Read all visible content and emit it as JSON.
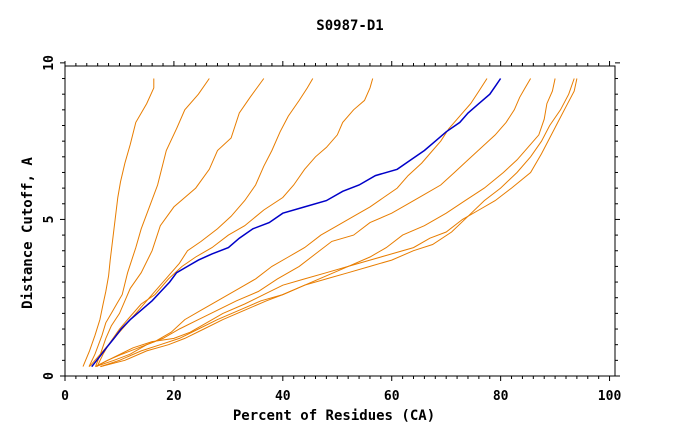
{
  "chart_data": {
    "type": "line",
    "title": "S0987-D1",
    "xlabel": "Percent of Residues (CA)",
    "ylabel": "Distance Cutoff, A",
    "xlim": [
      0,
      101
    ],
    "ylim": [
      0,
      9.9
    ],
    "xticks": [
      0,
      20,
      40,
      60,
      80,
      100
    ],
    "yticks": [
      0,
      5,
      10
    ],
    "grid": false,
    "colors": {
      "orange": "#e87d00",
      "blue": "#0000c8",
      "axis": "#000000"
    },
    "series": [
      {
        "color": "orange",
        "points": [
          [
            3.3,
            0.3
          ],
          [
            4.5,
            0.8
          ],
          [
            5.5,
            1.3
          ],
          [
            6.4,
            1.8
          ],
          [
            7,
            2.3
          ],
          [
            7.5,
            2.7
          ],
          [
            8,
            3.2
          ],
          [
            8.3,
            3.7
          ],
          [
            9,
            4.7
          ],
          [
            9.7,
            5.7
          ],
          [
            10.2,
            6.2
          ],
          [
            11,
            6.8
          ],
          [
            12,
            7.4
          ],
          [
            13,
            8.1
          ],
          [
            15,
            8.7
          ],
          [
            16.3,
            9.2
          ],
          [
            16.3,
            9.5
          ]
        ]
      },
      {
        "color": "orange",
        "points": [
          [
            4.4,
            0.3
          ],
          [
            5.5,
            0.7
          ],
          [
            6.8,
            1.3
          ],
          [
            7.5,
            1.7
          ],
          [
            8.5,
            2
          ],
          [
            9.5,
            2.3
          ],
          [
            10.5,
            2.6
          ],
          [
            11.5,
            3.3
          ],
          [
            13,
            4.1
          ],
          [
            14,
            4.7
          ],
          [
            15.5,
            5.4
          ],
          [
            17,
            6.1
          ],
          [
            18.6,
            7.2
          ],
          [
            20.5,
            7.9
          ],
          [
            22,
            8.5
          ],
          [
            24.5,
            9
          ],
          [
            26.5,
            9.5
          ]
        ]
      },
      {
        "color": "orange",
        "points": [
          [
            5.6,
            0.3
          ],
          [
            6.5,
            0.7
          ],
          [
            7.5,
            1.2
          ],
          [
            8.5,
            1.6
          ],
          [
            10,
            2
          ],
          [
            11,
            2.4
          ],
          [
            12,
            2.8
          ],
          [
            14,
            3.3
          ],
          [
            16,
            4
          ],
          [
            17.5,
            4.8
          ],
          [
            20,
            5.4
          ],
          [
            24,
            6
          ],
          [
            26.5,
            6.6
          ],
          [
            28,
            7.2
          ],
          [
            30.5,
            7.6
          ],
          [
            32,
            8.4
          ],
          [
            34,
            8.9
          ],
          [
            36.5,
            9.5
          ]
        ]
      },
      {
        "color": "orange",
        "points": [
          [
            5.9,
            0.3
          ],
          [
            7,
            0.7
          ],
          [
            8,
            1
          ],
          [
            9.5,
            1.3
          ],
          [
            11,
            1.6
          ],
          [
            13,
            2
          ],
          [
            15,
            2.4
          ],
          [
            17,
            2.8
          ],
          [
            19,
            3.2
          ],
          [
            21,
            3.6
          ],
          [
            22.5,
            4
          ],
          [
            25,
            4.3
          ],
          [
            28,
            4.7
          ],
          [
            30.5,
            5.1
          ],
          [
            33,
            5.6
          ],
          [
            35,
            6.1
          ],
          [
            36.5,
            6.7
          ],
          [
            38,
            7.2
          ],
          [
            39.5,
            7.8
          ],
          [
            41,
            8.3
          ],
          [
            43,
            8.8
          ],
          [
            44.5,
            9.2
          ],
          [
            45.5,
            9.5
          ]
        ]
      },
      {
        "color": "orange",
        "points": [
          [
            4.5,
            0.3
          ],
          [
            6,
            0.6
          ],
          [
            8,
            1
          ],
          [
            10,
            1.5
          ],
          [
            12,
            1.9
          ],
          [
            14,
            2.3
          ],
          [
            16.5,
            2.6
          ],
          [
            19,
            3.1
          ],
          [
            21.5,
            3.5
          ],
          [
            24,
            3.8
          ],
          [
            27,
            4.1
          ],
          [
            30,
            4.5
          ],
          [
            33,
            4.8
          ],
          [
            36.5,
            5.3
          ],
          [
            40,
            5.7
          ],
          [
            42,
            6.1
          ],
          [
            44,
            6.6
          ],
          [
            46,
            7
          ],
          [
            48,
            7.3
          ],
          [
            50,
            7.7
          ],
          [
            51,
            8.1
          ],
          [
            53,
            8.5
          ],
          [
            55,
            8.8
          ],
          [
            56,
            9.2
          ],
          [
            56.5,
            9.5
          ]
        ]
      },
      {
        "color": "orange",
        "points": [
          [
            5.6,
            0.3
          ],
          [
            7.8,
            0.5
          ],
          [
            10.5,
            0.7
          ],
          [
            13.5,
            0.9
          ],
          [
            16.5,
            1.1
          ],
          [
            19.5,
            1.4
          ],
          [
            22,
            1.8
          ],
          [
            25,
            2.1
          ],
          [
            28,
            2.4
          ],
          [
            32,
            2.8
          ],
          [
            35,
            3.1
          ],
          [
            38,
            3.5
          ],
          [
            41,
            3.8
          ],
          [
            44,
            4.1
          ],
          [
            47,
            4.5
          ],
          [
            50,
            4.8
          ],
          [
            53,
            5.1
          ],
          [
            56,
            5.4
          ],
          [
            58.5,
            5.7
          ],
          [
            61,
            6
          ],
          [
            63,
            6.4
          ],
          [
            65.5,
            6.8
          ],
          [
            67.5,
            7.2
          ],
          [
            69,
            7.5
          ],
          [
            70.5,
            7.9
          ],
          [
            72.5,
            8.3
          ],
          [
            74.5,
            8.7
          ],
          [
            76,
            9.1
          ],
          [
            77.5,
            9.5
          ]
        ]
      },
      {
        "color": "orange",
        "points": [
          [
            5.6,
            0.3
          ],
          [
            9,
            0.5
          ],
          [
            12,
            0.7
          ],
          [
            15,
            1
          ],
          [
            18,
            1.2
          ],
          [
            21,
            1.5
          ],
          [
            24.5,
            1.8
          ],
          [
            28,
            2.1
          ],
          [
            31.5,
            2.4
          ],
          [
            35.5,
            2.7
          ],
          [
            39,
            3.1
          ],
          [
            43,
            3.5
          ],
          [
            46,
            3.9
          ],
          [
            49,
            4.3
          ],
          [
            53,
            4.5
          ],
          [
            56,
            4.9
          ],
          [
            60,
            5.2
          ],
          [
            63,
            5.5
          ],
          [
            66,
            5.8
          ],
          [
            69,
            6.1
          ],
          [
            71.5,
            6.5
          ],
          [
            74,
            6.9
          ],
          [
            76.5,
            7.3
          ],
          [
            79,
            7.7
          ],
          [
            81,
            8.1
          ],
          [
            82.5,
            8.5
          ],
          [
            83.5,
            8.9
          ],
          [
            84.5,
            9.2
          ],
          [
            85.5,
            9.5
          ]
        ]
      },
      {
        "color": "orange",
        "points": [
          [
            6.5,
            0.3
          ],
          [
            10,
            0.5
          ],
          [
            14,
            0.8
          ],
          [
            17.5,
            1
          ],
          [
            21,
            1.2
          ],
          [
            24.5,
            1.5
          ],
          [
            28,
            1.8
          ],
          [
            32,
            2.1
          ],
          [
            36,
            2.4
          ],
          [
            40,
            2.6
          ],
          [
            44,
            2.9
          ],
          [
            48,
            3.2
          ],
          [
            52,
            3.5
          ],
          [
            56,
            3.8
          ],
          [
            59,
            4.1
          ],
          [
            62,
            4.5
          ],
          [
            66,
            4.8
          ],
          [
            70,
            5.2
          ],
          [
            73.5,
            5.6
          ],
          [
            77,
            6
          ],
          [
            80.5,
            6.5
          ],
          [
            83,
            6.9
          ],
          [
            85,
            7.3
          ],
          [
            87,
            7.7
          ],
          [
            88,
            8.2
          ],
          [
            88.5,
            8.7
          ],
          [
            89.5,
            9.1
          ],
          [
            90,
            9.5
          ]
        ]
      },
      {
        "color": "orange",
        "points": [
          [
            6.5,
            0.3
          ],
          [
            11,
            0.5
          ],
          [
            15,
            0.8
          ],
          [
            19,
            1
          ],
          [
            22,
            1.2
          ],
          [
            25.5,
            1.5
          ],
          [
            29,
            1.8
          ],
          [
            33,
            2.1
          ],
          [
            37,
            2.4
          ],
          [
            40,
            2.6
          ],
          [
            44,
            2.9
          ],
          [
            48,
            3.1
          ],
          [
            52,
            3.3
          ],
          [
            56,
            3.5
          ],
          [
            60,
            3.7
          ],
          [
            64,
            4
          ],
          [
            67.5,
            4.2
          ],
          [
            71,
            4.6
          ],
          [
            74,
            5.1
          ],
          [
            77,
            5.6
          ],
          [
            80,
            6
          ],
          [
            83,
            6.5
          ],
          [
            85.5,
            7
          ],
          [
            87.5,
            7.5
          ],
          [
            89,
            8
          ],
          [
            91,
            8.5
          ],
          [
            92.5,
            9
          ],
          [
            93.5,
            9.5
          ]
        ]
      },
      {
        "color": "orange",
        "points": [
          [
            5.6,
            0.3
          ],
          [
            9,
            0.6
          ],
          [
            12.5,
            0.9
          ],
          [
            16,
            1.1
          ],
          [
            20,
            1.2
          ],
          [
            23,
            1.4
          ],
          [
            26,
            1.7
          ],
          [
            29,
            2
          ],
          [
            33,
            2.3
          ],
          [
            36.5,
            2.6
          ],
          [
            40,
            2.9
          ],
          [
            44,
            3.1
          ],
          [
            48,
            3.3
          ],
          [
            52,
            3.5
          ],
          [
            56,
            3.7
          ],
          [
            60,
            3.9
          ],
          [
            64,
            4.1
          ],
          [
            67,
            4.4
          ],
          [
            70,
            4.6
          ],
          [
            73,
            5
          ],
          [
            76,
            5.3
          ],
          [
            79,
            5.6
          ],
          [
            82,
            6
          ],
          [
            85.5,
            6.5
          ],
          [
            87.5,
            7.1
          ],
          [
            89,
            7.6
          ],
          [
            90.5,
            8.1
          ],
          [
            92,
            8.6
          ],
          [
            93.5,
            9.1
          ],
          [
            94,
            9.5
          ]
        ]
      },
      {
        "color": "blue",
        "points": [
          [
            4.9,
            0.3
          ],
          [
            6.3,
            0.6
          ],
          [
            7.6,
            0.9
          ],
          [
            9,
            1.2
          ],
          [
            10.3,
            1.5
          ],
          [
            12,
            1.8
          ],
          [
            14,
            2.1
          ],
          [
            16,
            2.4
          ],
          [
            17.6,
            2.7
          ],
          [
            19.2,
            3
          ],
          [
            20.5,
            3.3
          ],
          [
            22.5,
            3.5
          ],
          [
            24.5,
            3.7
          ],
          [
            27,
            3.9
          ],
          [
            30,
            4.1
          ],
          [
            32,
            4.4
          ],
          [
            34.5,
            4.7
          ],
          [
            37.5,
            4.9
          ],
          [
            40,
            5.2
          ],
          [
            44,
            5.4
          ],
          [
            48,
            5.6
          ],
          [
            51,
            5.9
          ],
          [
            54,
            6.1
          ],
          [
            57,
            6.4
          ],
          [
            61,
            6.6
          ],
          [
            63.5,
            6.9
          ],
          [
            66,
            7.2
          ],
          [
            68,
            7.5
          ],
          [
            70,
            7.8
          ],
          [
            72.5,
            8.1
          ],
          [
            74,
            8.4
          ],
          [
            76,
            8.7
          ],
          [
            78,
            9
          ],
          [
            79.2,
            9.3
          ],
          [
            80,
            9.5
          ]
        ]
      }
    ]
  }
}
